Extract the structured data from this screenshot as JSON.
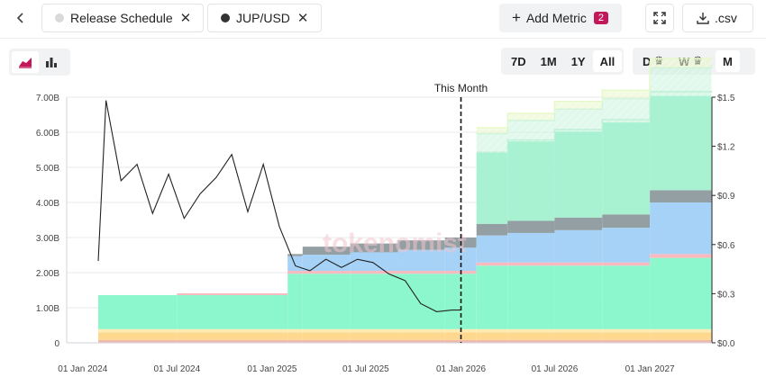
{
  "toolbar": {
    "back_icon": "chevron-left-icon",
    "chips": [
      {
        "label": "Release Schedule",
        "dot_color": "#d9d9d9"
      },
      {
        "label": "JUP/USD",
        "dot_color": "#333333"
      }
    ],
    "add_metric_label": "Add Metric",
    "add_metric_count": "2",
    "csv_label": ".csv"
  },
  "view_toggle": {
    "active": "area"
  },
  "ranges": [
    "7D",
    "1M",
    "1Y",
    "All"
  ],
  "active_range": "All",
  "granularity": [
    {
      "label": "D",
      "premium": true
    },
    {
      "label": "W",
      "premium": true
    },
    {
      "label": "M",
      "premium": false
    }
  ],
  "active_granularity": "M",
  "chart_data": {
    "type": "area",
    "watermark": "tokenomist",
    "annotation": "This Month",
    "annotation_x": "2026-01-01",
    "x_ticks": [
      "01 Jan 2024",
      "01 Jul 2024",
      "01 Jan 2025",
      "01 Jul 2025",
      "01 Jan 2026",
      "01 Jul 2026",
      "01 Jan 2027"
    ],
    "x_range": [
      "2023-12-01",
      "2027-05-01"
    ],
    "y_left": {
      "ticks": [
        "0",
        "1.00B",
        "2.00B",
        "3.00B",
        "4.00B",
        "5.00B",
        "6.00B",
        "7.00B"
      ],
      "range": [
        0,
        7000000000
      ]
    },
    "y_right": {
      "ticks": [
        "$0.0",
        "$0.3",
        "$0.6",
        "$0.9",
        "$1.2",
        "$1.5"
      ],
      "range": [
        0,
        1.5
      ]
    },
    "grid": true,
    "unlock_steps": [
      {
        "date": "2024-01-31",
        "layers": [
          0.08,
          0.22,
          0.09,
          0.0,
          0.97,
          0.0,
          0.0,
          0.0,
          0.0,
          0.0
        ]
      },
      {
        "date": "2024-07-01",
        "layers": [
          0.08,
          0.22,
          0.09,
          0.0,
          0.97,
          0.05,
          0.0,
          0.0,
          0.0,
          0.0
        ]
      },
      {
        "date": "2025-01-31",
        "layers": [
          0.08,
          0.22,
          0.09,
          1.58,
          0.0,
          0.08,
          0.42,
          0.06,
          0.0,
          0.0
        ]
      },
      {
        "date": "2025-03-01",
        "layers": [
          0.08,
          0.22,
          0.09,
          1.58,
          0.0,
          0.08,
          0.46,
          0.23,
          0.0,
          0.0
        ]
      },
      {
        "date": "2025-06-01",
        "layers": [
          0.08,
          0.22,
          0.09,
          1.58,
          0.0,
          0.08,
          0.53,
          0.25,
          0.0,
          0.0
        ]
      },
      {
        "date": "2025-09-01",
        "layers": [
          0.08,
          0.22,
          0.09,
          1.58,
          0.0,
          0.08,
          0.6,
          0.27,
          0.0,
          0.0
        ]
      },
      {
        "date": "2025-12-01",
        "layers": [
          0.08,
          0.22,
          0.09,
          1.58,
          0.0,
          0.08,
          0.66,
          0.29,
          0.0,
          0.0
        ]
      },
      {
        "date": "2026-01-31",
        "layers": [
          0.08,
          0.22,
          0.09,
          1.81,
          0.0,
          0.09,
          0.77,
          0.33,
          2.02,
          0.0
        ]
      },
      {
        "date": "2026-04-01",
        "layers": [
          0.08,
          0.22,
          0.09,
          1.81,
          0.0,
          0.09,
          0.84,
          0.35,
          2.26,
          0.0
        ]
      },
      {
        "date": "2026-07-01",
        "layers": [
          0.08,
          0.22,
          0.09,
          1.81,
          0.0,
          0.09,
          0.92,
          0.36,
          2.45,
          0.0
        ]
      },
      {
        "date": "2026-10-01",
        "layers": [
          0.08,
          0.22,
          0.09,
          1.81,
          0.0,
          0.09,
          0.99,
          0.38,
          2.62,
          0.0
        ]
      },
      {
        "date": "2027-01-01",
        "layers": [
          0.08,
          0.22,
          0.09,
          2.03,
          0.0,
          0.11,
          1.47,
          0.35,
          2.68,
          0.01
        ]
      },
      {
        "date": "2027-04-30",
        "layers": [
          0.08,
          0.22,
          0.09,
          2.03,
          0.0,
          0.11,
          1.47,
          0.35,
          2.68,
          0.01
        ]
      }
    ],
    "layer_colors": [
      "#f0b9ad",
      "#ffd88f",
      "#ffeab0",
      "#8cf7cd",
      "#8cf7cd",
      "#f9b9bf",
      "#a6d2f7",
      "#949fa3",
      "#a8f2d2",
      "#a8f2d2"
    ],
    "future_bands": [
      {
        "color": "#b8f0d2",
        "values": [
          0.02,
          0.04,
          0.06,
          0.08,
          0.1,
          0.12,
          0.14
        ]
      },
      {
        "color": "#c8f3dc",
        "values": [
          0.55,
          0.6,
          0.64,
          0.68,
          0.71,
          0.8,
          0.88
        ]
      },
      {
        "color": "#e7f8c8",
        "values": [
          0.72,
          0.8,
          0.86,
          0.92,
          0.97,
          1.06,
          1.14
        ]
      }
    ],
    "future_band_dates": [
      "2026-01-31",
      "2026-04-01",
      "2026-07-01",
      "2026-10-01",
      "2027-01-01",
      "2027-01-02",
      "2027-04-30"
    ],
    "price_series": {
      "dates": [
        "2024-01-31",
        "2024-02-15",
        "2024-03-15",
        "2024-04-15",
        "2024-05-15",
        "2024-06-15",
        "2024-07-15",
        "2024-08-15",
        "2024-09-15",
        "2024-10-15",
        "2024-11-15",
        "2024-12-15",
        "2025-01-15",
        "2025-02-15",
        "2025-03-15",
        "2025-04-15",
        "2025-05-15",
        "2025-06-15",
        "2025-07-15",
        "2025-08-15",
        "2025-09-15",
        "2025-10-15",
        "2025-11-15",
        "2025-12-15",
        "2026-01-01"
      ],
      "values": [
        0.5,
        1.48,
        0.99,
        1.09,
        0.79,
        1.03,
        0.76,
        0.91,
        1.01,
        1.15,
        0.8,
        1.09,
        0.71,
        0.47,
        0.44,
        0.51,
        0.46,
        0.51,
        0.49,
        0.42,
        0.38,
        0.24,
        0.19,
        0.2,
        0.2
      ]
    }
  }
}
